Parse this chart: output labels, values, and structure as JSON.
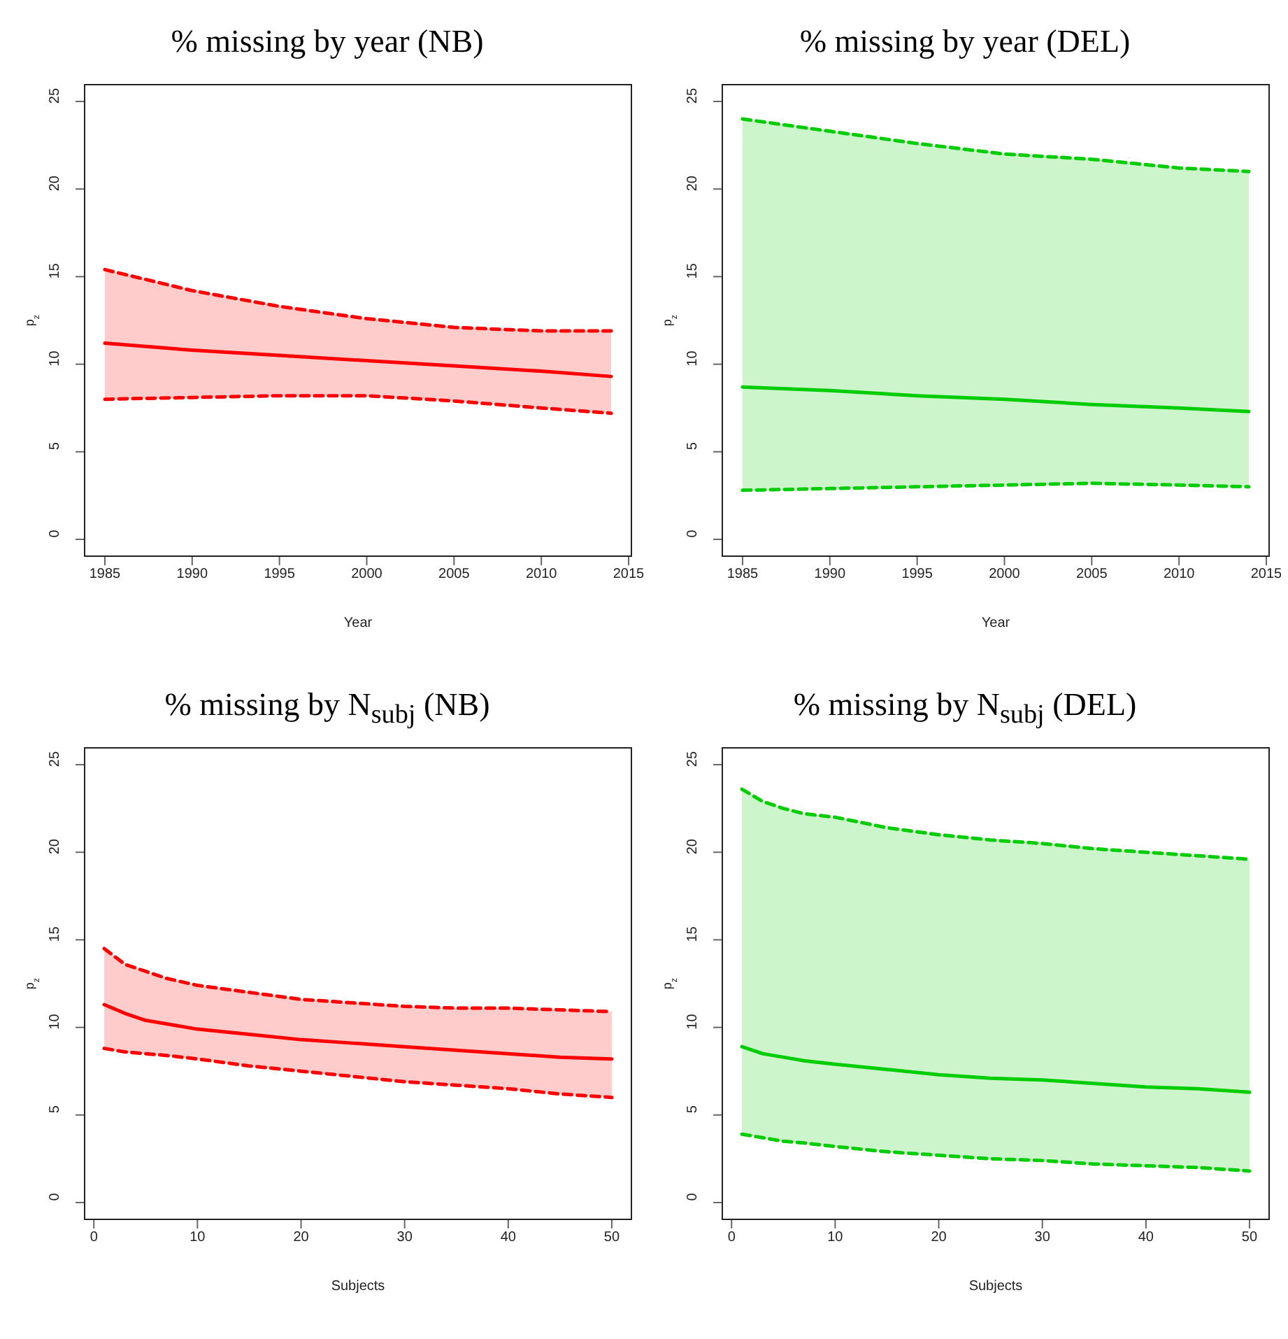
{
  "chart_data": [
    {
      "type": "line",
      "title": "% missing by year (NB)",
      "xlabel": "Year",
      "ylabel": "p$_{z}$",
      "x": [
        1985,
        1990,
        1995,
        2000,
        2005,
        2010,
        2014
      ],
      "xlim": [
        1983.8,
        2015.2
      ],
      "xticks": [
        1985,
        1990,
        1995,
        2000,
        2005,
        2010,
        2015
      ],
      "ylim": [
        -1,
        26
      ],
      "yticks": [
        0,
        5,
        10,
        15,
        20,
        25
      ],
      "series": [
        {
          "color": "#ff0000",
          "line_style": "solid",
          "values": [
            11.2,
            10.8,
            10.5,
            10.2,
            9.9,
            9.6,
            9.3
          ],
          "lower": [
            8.0,
            8.1,
            8.2,
            8.2,
            7.9,
            7.5,
            7.2
          ],
          "upper": [
            15.4,
            14.2,
            13.3,
            12.6,
            12.1,
            11.9,
            11.9
          ]
        },
        {
          "color": "#ff0000",
          "line_style": "dashed",
          "values": [
            15.4,
            14.2,
            13.3,
            12.6,
            12.1,
            11.9,
            11.9
          ]
        },
        {
          "color": "#ff0000",
          "line_style": "dashed",
          "values": [
            8.0,
            8.1,
            8.2,
            8.2,
            7.9,
            7.5,
            7.2
          ]
        }
      ]
    },
    {
      "type": "line",
      "title": "% missing by year (DEL)",
      "xlabel": "Year",
      "ylabel": "p$_{z}$",
      "x": [
        1985,
        1990,
        1995,
        2000,
        2005,
        2010,
        2014
      ],
      "xlim": [
        1983.8,
        2015.2
      ],
      "xticks": [
        1985,
        1990,
        1995,
        2000,
        2005,
        2010,
        2015
      ],
      "ylim": [
        -1,
        26
      ],
      "yticks": [
        0,
        5,
        10,
        15,
        20,
        25
      ],
      "series": [
        {
          "color": "#00cd00",
          "line_style": "solid",
          "values": [
            8.7,
            8.5,
            8.2,
            8.0,
            7.7,
            7.5,
            7.3
          ],
          "lower": [
            2.8,
            2.9,
            3.0,
            3.1,
            3.2,
            3.1,
            3.0
          ],
          "upper": [
            24.0,
            23.3,
            22.6,
            22.0,
            21.7,
            21.2,
            21.0
          ]
        },
        {
          "color": "#00cd00",
          "line_style": "dashed",
          "values": [
            24.0,
            23.3,
            22.6,
            22.0,
            21.7,
            21.2,
            21.0
          ]
        },
        {
          "color": "#00cd00",
          "line_style": "dashed",
          "values": [
            2.8,
            2.9,
            3.0,
            3.1,
            3.2,
            3.1,
            3.0
          ]
        }
      ]
    },
    {
      "type": "line",
      "title": "% missing by N$_{subj}$ (NB)",
      "xlabel": "Subjects",
      "ylabel": "p$_{z}$",
      "x": [
        1,
        3,
        5,
        7,
        10,
        15,
        20,
        25,
        30,
        35,
        40,
        45,
        50
      ],
      "xlim": [
        -0.96,
        51.96
      ],
      "xticks": [
        0,
        10,
        20,
        30,
        40,
        50
      ],
      "ylim": [
        -1,
        26
      ],
      "yticks": [
        0,
        5,
        10,
        15,
        20,
        25
      ],
      "series": [
        {
          "color": "#ff0000",
          "line_style": "solid",
          "values": [
            11.3,
            10.8,
            10.4,
            10.2,
            9.9,
            9.6,
            9.3,
            9.1,
            8.9,
            8.7,
            8.5,
            8.3,
            8.2
          ],
          "lower": [
            8.8,
            8.6,
            8.5,
            8.4,
            8.2,
            7.8,
            7.5,
            7.2,
            6.9,
            6.7,
            6.5,
            6.2,
            6.0
          ],
          "upper": [
            14.5,
            13.6,
            13.2,
            12.8,
            12.4,
            12.0,
            11.6,
            11.4,
            11.2,
            11.1,
            11.1,
            11.0,
            10.9
          ]
        },
        {
          "color": "#ff0000",
          "line_style": "dashed",
          "values": [
            14.5,
            13.6,
            13.2,
            12.8,
            12.4,
            12.0,
            11.6,
            11.4,
            11.2,
            11.1,
            11.1,
            11.0,
            10.9
          ]
        },
        {
          "color": "#ff0000",
          "line_style": "dashed",
          "values": [
            8.8,
            8.6,
            8.5,
            8.4,
            8.2,
            7.8,
            7.5,
            7.2,
            6.9,
            6.7,
            6.5,
            6.2,
            6.0
          ]
        }
      ]
    },
    {
      "type": "line",
      "title": "% missing by N$_{subj}$ (DEL)",
      "xlabel": "Subjects",
      "ylabel": "p$_{z}$",
      "x": [
        1,
        3,
        5,
        7,
        10,
        15,
        20,
        25,
        30,
        35,
        40,
        45,
        50
      ],
      "xlim": [
        -0.96,
        51.96
      ],
      "xticks": [
        0,
        10,
        20,
        30,
        40,
        50
      ],
      "ylim": [
        -1,
        26
      ],
      "yticks": [
        0,
        5,
        10,
        15,
        20,
        25
      ],
      "series": [
        {
          "color": "#00cd00",
          "line_style": "solid",
          "values": [
            8.9,
            8.5,
            8.3,
            8.1,
            7.9,
            7.6,
            7.3,
            7.1,
            7.0,
            6.8,
            6.6,
            6.5,
            6.3
          ],
          "lower": [
            3.9,
            3.7,
            3.5,
            3.4,
            3.2,
            2.9,
            2.7,
            2.5,
            2.4,
            2.2,
            2.1,
            2.0,
            1.8
          ],
          "upper": [
            23.6,
            22.9,
            22.5,
            22.2,
            22.0,
            21.4,
            21.0,
            20.7,
            20.5,
            20.2,
            20.0,
            19.8,
            19.6
          ]
        },
        {
          "color": "#00cd00",
          "line_style": "dashed",
          "values": [
            23.6,
            22.9,
            22.5,
            22.2,
            22.0,
            21.4,
            21.0,
            20.7,
            20.5,
            20.2,
            20.0,
            19.8,
            19.6
          ]
        },
        {
          "color": "#00cd00",
          "line_style": "dashed",
          "values": [
            3.9,
            3.7,
            3.5,
            3.4,
            3.2,
            2.9,
            2.7,
            2.5,
            2.4,
            2.2,
            2.1,
            2.0,
            1.8
          ]
        }
      ]
    }
  ]
}
